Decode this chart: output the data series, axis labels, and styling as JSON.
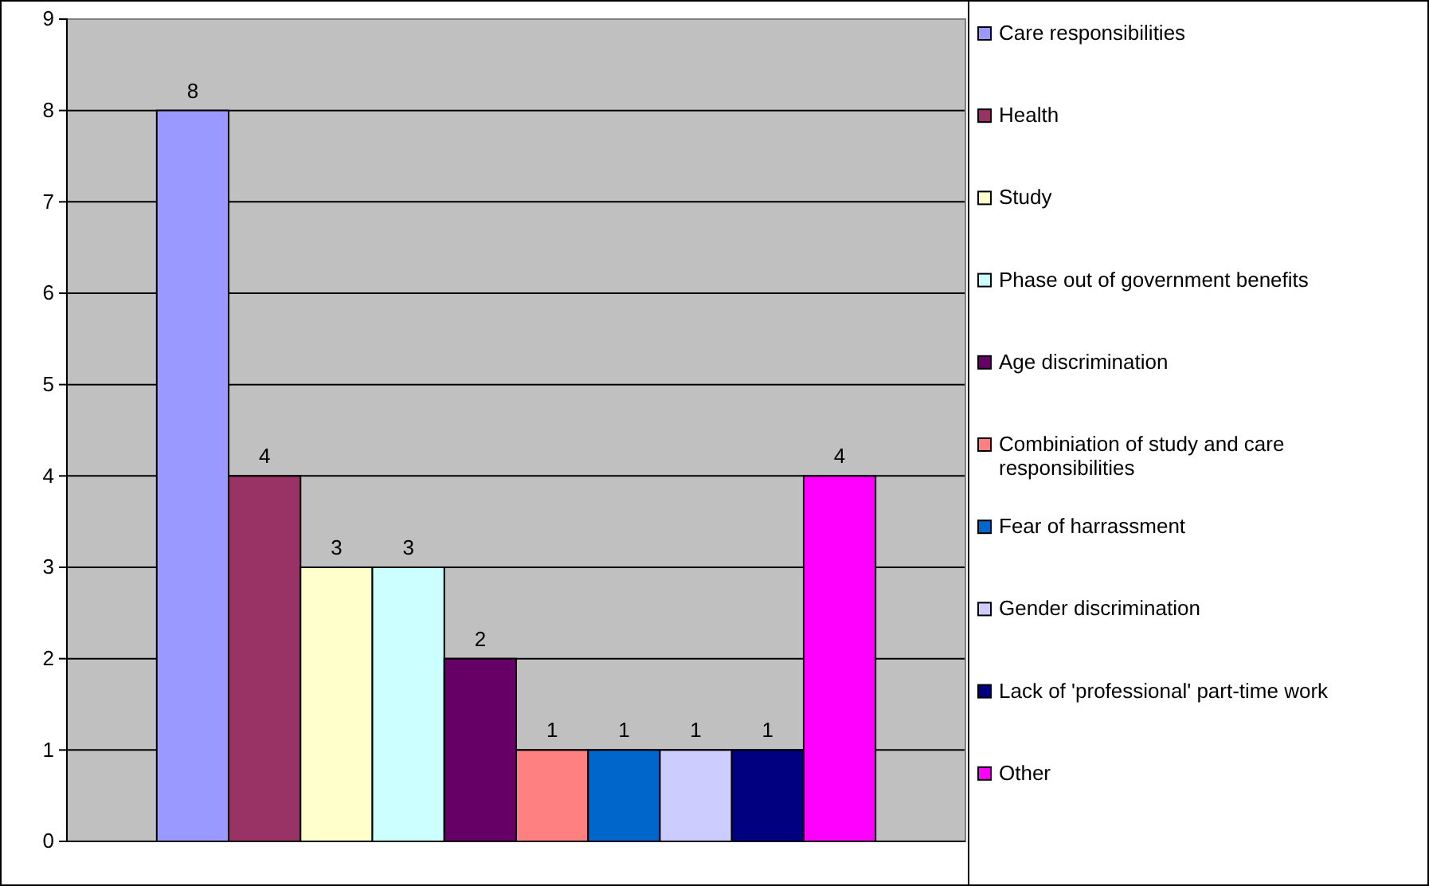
{
  "chart_data": {
    "type": "bar",
    "categories": [
      null
    ],
    "series": [
      {
        "name": "Care responsibilities",
        "color": "#9999ff",
        "values": [
          8
        ]
      },
      {
        "name": "Health",
        "color": "#993366",
        "values": [
          4
        ]
      },
      {
        "name": "Study",
        "color": "#ffffcc",
        "values": [
          3
        ]
      },
      {
        "name": "Phase out of government benefits",
        "color": "#ccffff",
        "values": [
          3
        ]
      },
      {
        "name": "Age discrimination",
        "color": "#660066",
        "values": [
          2
        ]
      },
      {
        "name": "Combiniation of study and care responsibilities",
        "color": "#ff8080",
        "values": [
          1
        ]
      },
      {
        "name": "Fear of harrassment",
        "color": "#0066cc",
        "values": [
          1
        ]
      },
      {
        "name": "Gender discrimination",
        "color": "#ccccff",
        "values": [
          1
        ]
      },
      {
        "name": "Lack of 'professional' part-time work",
        "color": "#000080",
        "values": [
          1
        ]
      },
      {
        "name": "Other",
        "color": "#ff00ff",
        "values": [
          4
        ]
      }
    ],
    "ylim": [
      0,
      9
    ],
    "yticks": [
      0,
      1,
      2,
      3,
      4,
      5,
      6,
      7,
      8,
      9
    ],
    "grid": "y",
    "legend": "right",
    "data_labels": true
  }
}
